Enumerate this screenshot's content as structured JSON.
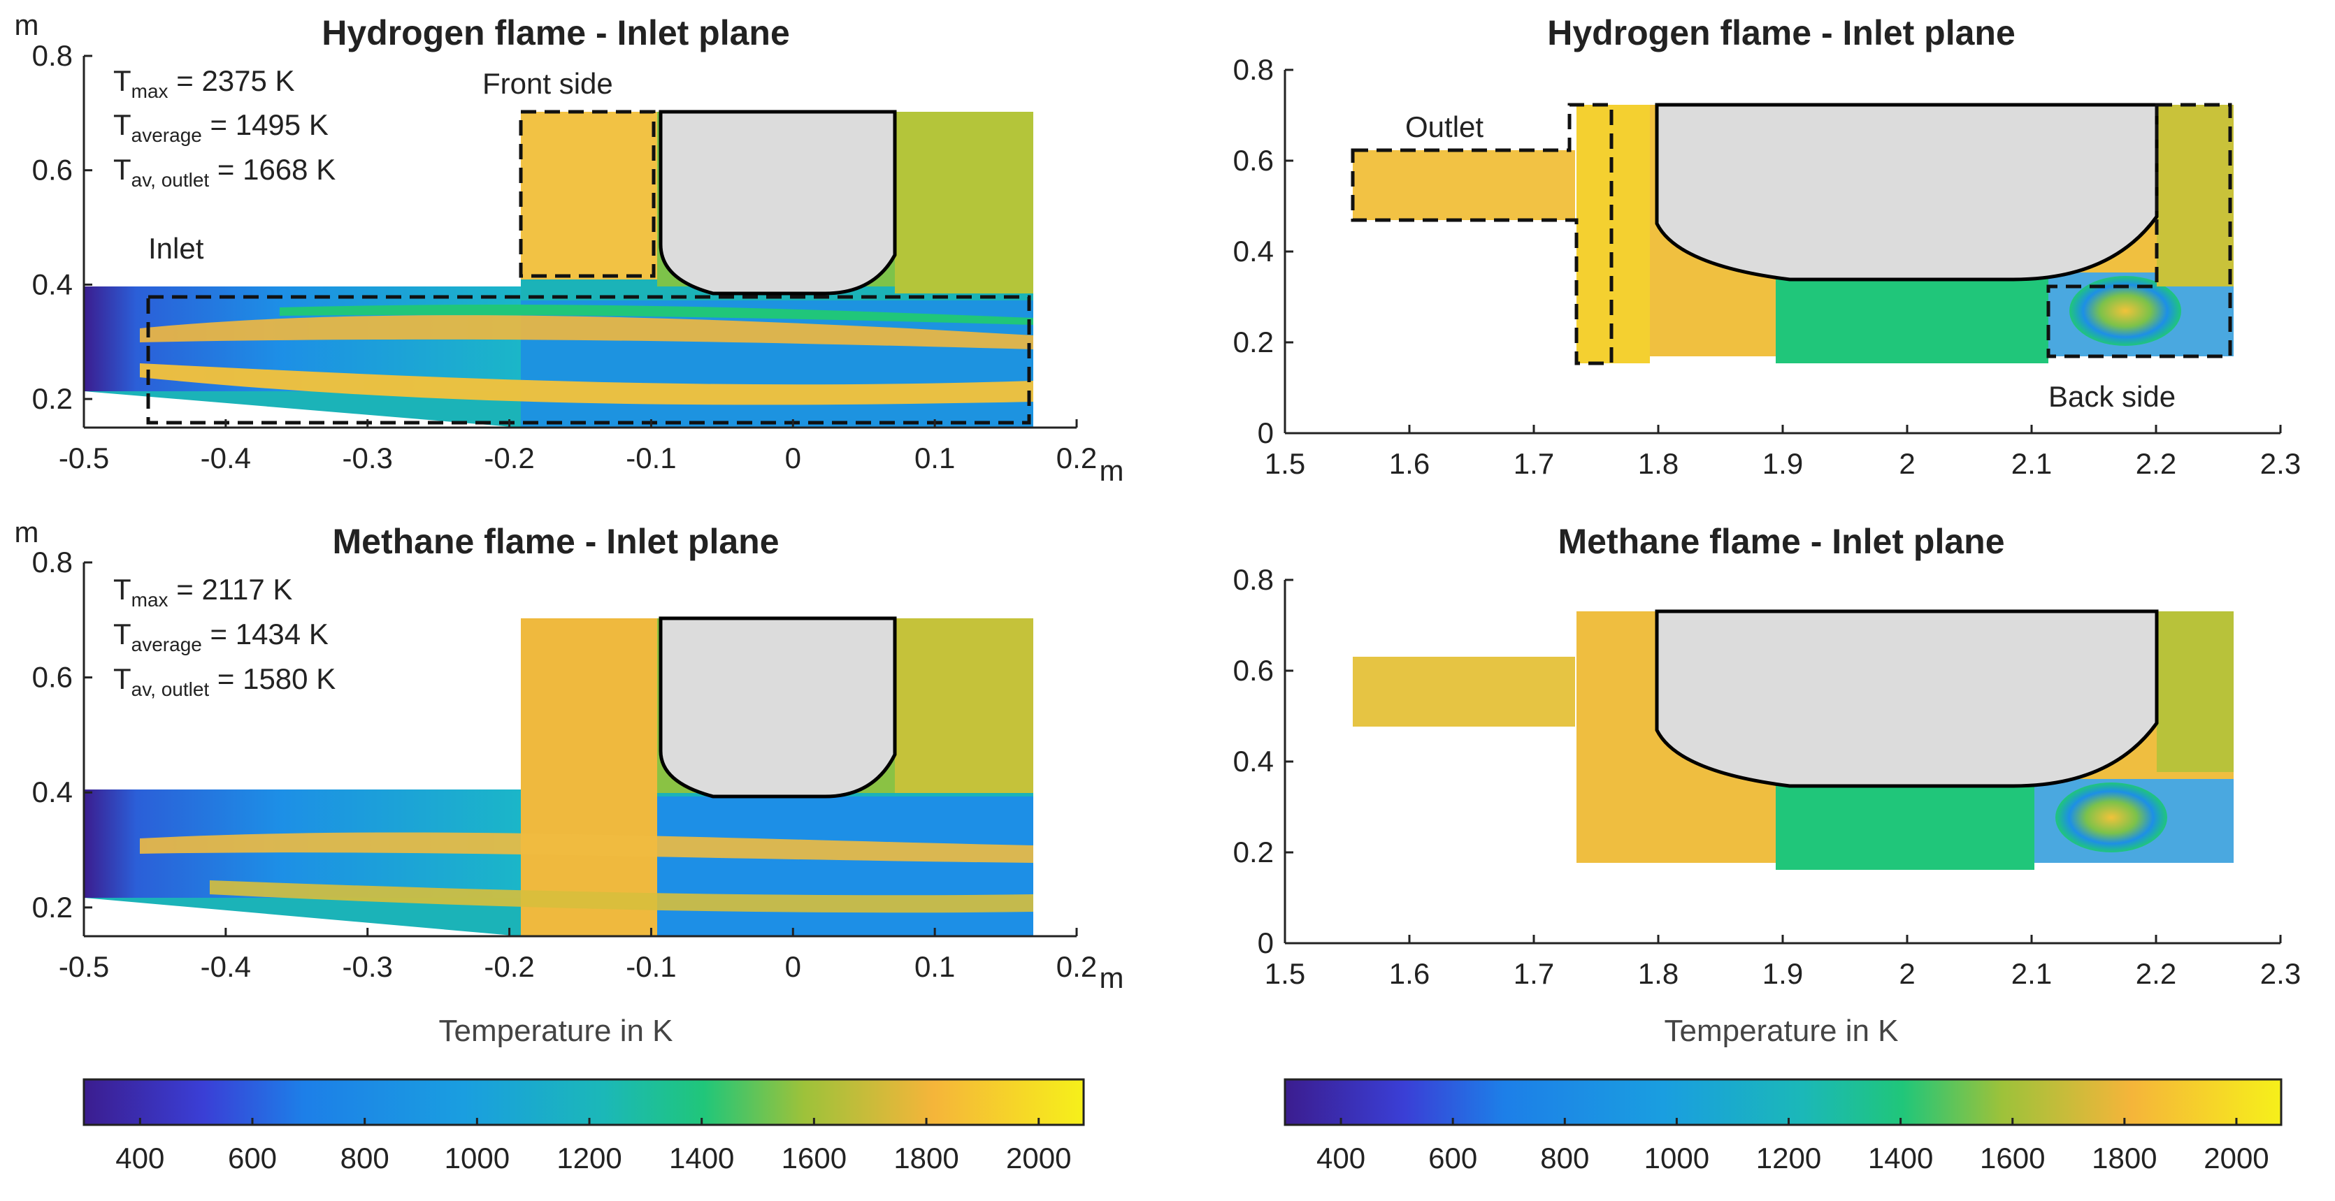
{
  "chart_data": [
    {
      "type": "heatmap",
      "title": "Hydrogen flame - Inlet plane",
      "xlabel": "m",
      "ylabel": "m",
      "xlim": [
        -0.5,
        0.2
      ],
      "ylim": [
        0.15,
        0.8
      ],
      "xticks": [
        -0.5,
        -0.4,
        -0.3,
        -0.2,
        -0.1,
        0,
        0.1,
        0.2
      ],
      "yticks": [
        0.2,
        0.4,
        0.6,
        0.8
      ],
      "stats": {
        "Tmax": "2375 K",
        "Taverage": "1495 K",
        "Tav_outlet": "1668 K"
      },
      "annotations": [
        "Inlet",
        "Front side"
      ]
    },
    {
      "type": "heatmap",
      "title": "Hydrogen flame - Inlet plane",
      "xlim": [
        1.5,
        2.3
      ],
      "ylim": [
        0,
        0.8
      ],
      "xticks": [
        1.5,
        1.6,
        1.7,
        1.8,
        1.9,
        2,
        2.1,
        2.2,
        2.3
      ],
      "yticks": [
        0,
        0.2,
        0.4,
        0.6,
        0.8
      ],
      "annotations": [
        "Outlet",
        "Back side"
      ]
    },
    {
      "type": "heatmap",
      "title": "Methane flame - Inlet plane",
      "xlabel": "m",
      "ylabel": "m",
      "xlim": [
        -0.5,
        0.2
      ],
      "ylim": [
        0.15,
        0.8
      ],
      "xticks": [
        -0.5,
        -0.4,
        -0.3,
        -0.2,
        -0.1,
        0,
        0.1,
        0.2
      ],
      "yticks": [
        0.2,
        0.4,
        0.6,
        0.8
      ],
      "stats": {
        "Tmax": "2117 K",
        "Taverage": "1434 K",
        "Tav_outlet": "1580 K"
      },
      "colorbar": {
        "label": "Temperature in K",
        "ticks": [
          400,
          600,
          800,
          1000,
          1200,
          1400,
          1600,
          1800,
          2000
        ],
        "range": [
          300,
          2080
        ]
      }
    },
    {
      "type": "heatmap",
      "title": "Methane flame - Inlet plane",
      "xlim": [
        1.5,
        2.3
      ],
      "ylim": [
        0,
        0.8
      ],
      "xticks": [
        1.5,
        1.6,
        1.7,
        1.8,
        1.9,
        2,
        2.1,
        2.2,
        2.3
      ],
      "yticks": [
        0,
        0.2,
        0.4,
        0.6,
        0.8
      ],
      "colorbar": {
        "label": "Temperature in K",
        "ticks": [
          400,
          600,
          800,
          1000,
          1200,
          1400,
          1600,
          1800,
          2000
        ],
        "range": [
          300,
          2080
        ]
      }
    }
  ],
  "labels": {
    "t_symbol": "T",
    "sub_max": "max",
    "sub_average": "average",
    "sub_outlet": "av, outlet",
    "equals": " = "
  },
  "colors": {
    "dark": "#3b1d8f",
    "blue": "#1d7fe8",
    "cyan": "#1bb3c2",
    "green": "#20c67a",
    "olive": "#a8c332",
    "orange": "#f5b53a",
    "yellow": "#f4e81c",
    "body_gray": "#dcdcdc"
  }
}
